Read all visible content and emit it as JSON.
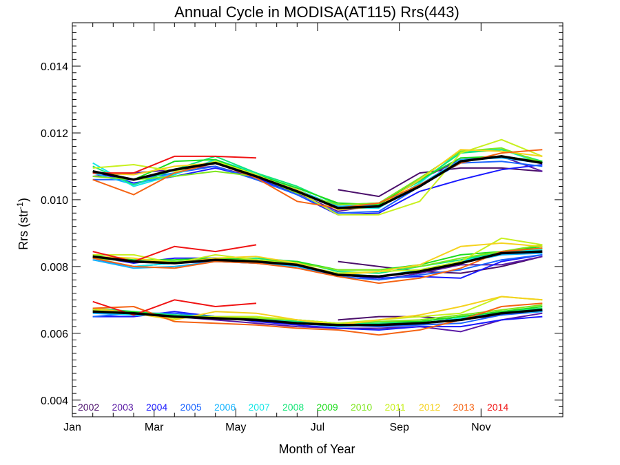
{
  "chart_data": {
    "type": "line",
    "title": "Annual Cycle in MODISA(AT115) Rrs(443)",
    "xlabel": "Month of Year",
    "ylabel_main": "Rrs (str",
    "ylabel_sup": "-1",
    "ylabel_close": ")",
    "xlim": [
      0.5,
      12.5
    ],
    "ylim": [
      0.0035,
      0.0153
    ],
    "x_ticks": [
      {
        "value": 0.5,
        "label": "Jan"
      },
      {
        "value": 2.5,
        "label": "Mar"
      },
      {
        "value": 4.5,
        "label": "May"
      },
      {
        "value": 6.5,
        "label": "Jul"
      },
      {
        "value": 8.5,
        "label": "Sep"
      },
      {
        "value": 10.5,
        "label": "Nov"
      }
    ],
    "y_ticks": [
      {
        "value": 0.004,
        "label": "0.004"
      },
      {
        "value": 0.006,
        "label": "0.006"
      },
      {
        "value": 0.008,
        "label": "0.008"
      },
      {
        "value": 0.01,
        "label": "0.010"
      },
      {
        "value": 0.012,
        "label": "0.012"
      },
      {
        "value": 0.014,
        "label": "0.014"
      }
    ],
    "legend_placement": "bottom-left, inside",
    "series": [
      {
        "name": "2002",
        "color": "#4b0f6b",
        "bands": [
          [
            null,
            null,
            null,
            null,
            null,
            null,
            0.0103,
            0.0101,
            0.0108,
            0.01095,
            0.01095,
            0.01085
          ],
          [
            null,
            null,
            null,
            null,
            null,
            null,
            0.00815,
            0.008,
            0.00785,
            0.0078,
            0.008,
            0.0083
          ],
          [
            null,
            null,
            null,
            null,
            null,
            null,
            0.0064,
            0.0065,
            0.0065,
            0.0064,
            0.00655,
            0.0067
          ]
        ]
      },
      {
        "name": "2003",
        "color": "#5a1aa5",
        "bands": [
          [
            0.0107,
            0.0108,
            0.0109,
            0.011,
            0.01065,
            0.0102,
            0.00965,
            0.00985,
            0.0106,
            0.0112,
            0.0113,
            0.01085
          ],
          [
            0.0083,
            0.00815,
            0.0081,
            0.00815,
            0.0081,
            0.008,
            0.0078,
            0.0076,
            0.0078,
            0.00805,
            0.00805,
            0.0083
          ],
          [
            0.0067,
            0.0066,
            0.0065,
            0.0064,
            0.0063,
            0.0062,
            0.00615,
            0.00615,
            0.0062,
            0.00605,
            0.0064,
            0.0066
          ]
        ]
      },
      {
        "name": "2004",
        "color": "#1a1aff",
        "bands": [
          [
            0.01085,
            0.0105,
            0.0107,
            0.01095,
            0.01065,
            0.01015,
            0.00955,
            0.0096,
            0.01025,
            0.0106,
            0.0109,
            0.01105
          ],
          [
            0.0083,
            0.0081,
            0.00825,
            0.00825,
            0.00815,
            0.00805,
            0.00775,
            0.00765,
            0.0077,
            0.00765,
            0.00815,
            0.00835
          ],
          [
            0.0065,
            0.0065,
            0.00665,
            0.0065,
            0.00635,
            0.00625,
            0.00615,
            0.0061,
            0.0062,
            0.0062,
            0.0064,
            0.0065
          ]
        ]
      },
      {
        "name": "2005",
        "color": "#1a64ff",
        "bands": [
          [
            0.0106,
            0.0106,
            0.0108,
            0.011,
            0.0106,
            0.01015,
            0.0096,
            0.00965,
            0.0104,
            0.0111,
            0.01115,
            0.011
          ],
          [
            0.0082,
            0.008,
            0.0081,
            0.0082,
            0.0081,
            0.008,
            0.0077,
            0.0076,
            0.00775,
            0.0079,
            0.0082,
            0.00835
          ],
          [
            0.0065,
            0.0066,
            0.0066,
            0.0065,
            0.0064,
            0.0063,
            0.00625,
            0.0062,
            0.00625,
            0.0063,
            0.00655,
            0.00665
          ]
        ]
      },
      {
        "name": "2006",
        "color": "#14b4ff",
        "bands": [
          [
            0.0108,
            0.01045,
            0.0108,
            0.0111,
            0.01075,
            0.0103,
            0.0098,
            0.00985,
            0.01045,
            0.0112,
            0.01125,
            0.0111
          ],
          [
            0.0082,
            0.00795,
            0.008,
            0.00815,
            0.0081,
            0.008,
            0.00775,
            0.0077,
            0.00785,
            0.0081,
            0.00835,
            0.0084
          ],
          [
            0.0066,
            0.00655,
            0.00655,
            0.00645,
            0.0064,
            0.0063,
            0.0062,
            0.00625,
            0.0063,
            0.0064,
            0.0066,
            0.00665
          ]
        ]
      },
      {
        "name": "2007",
        "color": "#14e6e6",
        "bands": [
          [
            0.0111,
            0.0104,
            0.01075,
            0.0112,
            0.0108,
            0.0103,
            0.00975,
            0.00975,
            0.0105,
            0.01145,
            0.0115,
            0.0111
          ],
          [
            0.00825,
            0.008,
            0.0081,
            0.0082,
            0.00815,
            0.00805,
            0.0078,
            0.0077,
            0.0079,
            0.00815,
            0.00845,
            0.0085
          ],
          [
            0.00665,
            0.00655,
            0.00655,
            0.0065,
            0.00645,
            0.00635,
            0.00625,
            0.00625,
            0.0063,
            0.00645,
            0.00665,
            0.0067
          ]
        ]
      },
      {
        "name": "2008",
        "color": "#14e678",
        "bands": [
          [
            0.011,
            0.01045,
            0.0109,
            0.0113,
            0.0108,
            0.0104,
            0.00985,
            0.0099,
            0.01055,
            0.0114,
            0.0115,
            0.01115
          ],
          [
            0.00835,
            0.00815,
            0.00815,
            0.0082,
            0.00825,
            0.00815,
            0.00785,
            0.0078,
            0.008,
            0.0082,
            0.00845,
            0.00855
          ],
          [
            0.00675,
            0.00665,
            0.00655,
            0.0065,
            0.0065,
            0.00635,
            0.0063,
            0.0063,
            0.00635,
            0.0065,
            0.00665,
            0.00675
          ]
        ]
      },
      {
        "name": "2009",
        "color": "#1edc1e",
        "bands": [
          [
            0.01085,
            0.0106,
            0.01115,
            0.0112,
            0.01075,
            0.01035,
            0.0099,
            0.00985,
            0.0106,
            0.01125,
            0.0113,
            0.01115
          ],
          [
            0.0083,
            0.0082,
            0.0082,
            0.00825,
            0.0082,
            0.00815,
            0.0079,
            0.0079,
            0.00805,
            0.00835,
            0.00845,
            0.0086
          ],
          [
            0.0067,
            0.00665,
            0.0065,
            0.0065,
            0.00645,
            0.0064,
            0.0063,
            0.00635,
            0.00635,
            0.0065,
            0.00665,
            0.0068
          ]
        ]
      },
      {
        "name": "2010",
        "color": "#7ee61e",
        "bands": [
          [
            0.0107,
            0.0106,
            0.0107,
            0.01085,
            0.0107,
            0.0102,
            0.00985,
            0.0099,
            0.01065,
            0.01145,
            0.01155,
            0.0111
          ],
          [
            0.00825,
            0.00815,
            0.00815,
            0.0082,
            0.0082,
            0.0081,
            0.0079,
            0.0079,
            0.008,
            0.00825,
            0.00845,
            0.00865
          ],
          [
            0.00665,
            0.0066,
            0.0065,
            0.0065,
            0.00645,
            0.0064,
            0.0063,
            0.00635,
            0.0064,
            0.00655,
            0.0067,
            0.00685
          ]
        ]
      },
      {
        "name": "2011",
        "color": "#c8f01e",
        "bands": [
          [
            0.01095,
            0.01105,
            0.01085,
            0.01115,
            0.01075,
            0.01025,
            0.00955,
            0.00955,
            0.00995,
            0.0114,
            0.0118,
            0.0113
          ],
          [
            0.00835,
            0.00835,
            0.0081,
            0.00835,
            0.0082,
            0.00805,
            0.0078,
            0.00785,
            0.0079,
            0.00815,
            0.00885,
            0.00865
          ],
          [
            0.0067,
            0.0066,
            0.00645,
            0.0065,
            0.0065,
            0.0064,
            0.0063,
            0.0064,
            0.0065,
            0.0066,
            0.0071,
            0.007
          ]
        ]
      },
      {
        "name": "2012",
        "color": "#f5d21e",
        "bands": [
          [
            0.0108,
            0.01075,
            0.011,
            0.0111,
            0.0107,
            0.0103,
            0.0097,
            0.0098,
            0.0106,
            0.0115,
            0.01145,
            0.0113
          ],
          [
            0.0083,
            0.00825,
            0.0081,
            0.00825,
            0.0083,
            0.0081,
            0.00775,
            0.00785,
            0.00805,
            0.0086,
            0.0087,
            0.0086
          ],
          [
            0.00675,
            0.0066,
            0.0064,
            0.00665,
            0.0066,
            0.0064,
            0.00625,
            0.0064,
            0.00655,
            0.0068,
            0.0071,
            0.007
          ]
        ]
      },
      {
        "name": "2013",
        "color": "#f56414",
        "bands": [
          [
            0.0106,
            0.01015,
            0.0108,
            0.0111,
            0.01065,
            0.00995,
            0.00975,
            0.0099,
            0.01045,
            0.0111,
            0.0114,
            0.0115
          ],
          [
            0.00825,
            0.008,
            0.00795,
            0.00815,
            0.0081,
            0.00795,
            0.0077,
            0.0075,
            0.00765,
            0.00795,
            0.00845,
            0.00855
          ],
          [
            0.00675,
            0.0068,
            0.00635,
            0.0063,
            0.00625,
            0.00615,
            0.0061,
            0.00595,
            0.0061,
            0.0064,
            0.0068,
            0.0069
          ]
        ]
      },
      {
        "name": "2014",
        "color": "#f01414",
        "bands": [
          [
            0.0108,
            0.0108,
            0.0113,
            0.0113,
            0.01125,
            null,
            null,
            null,
            null,
            null,
            null,
            null
          ],
          [
            0.00845,
            0.00815,
            0.0086,
            0.00845,
            0.00865,
            null,
            null,
            null,
            null,
            null,
            null,
            null
          ],
          [
            0.00695,
            0.00655,
            0.007,
            0.0068,
            0.0069,
            null,
            null,
            null,
            null,
            null,
            null,
            null
          ]
        ]
      }
    ],
    "mean": {
      "color": "#000000",
      "bands": [
        [
          0.01085,
          0.0106,
          0.0109,
          0.0111,
          0.0107,
          0.01025,
          0.00975,
          0.0098,
          0.0104,
          0.01115,
          0.0113,
          0.0111
        ],
        [
          0.0083,
          0.00815,
          0.0081,
          0.0082,
          0.00815,
          0.00805,
          0.00775,
          0.0077,
          0.00785,
          0.0081,
          0.0084,
          0.00845
        ],
        [
          0.00665,
          0.0066,
          0.0065,
          0.00645,
          0.0064,
          0.0063,
          0.00625,
          0.00625,
          0.0063,
          0.0064,
          0.0066,
          0.0067
        ]
      ]
    }
  }
}
